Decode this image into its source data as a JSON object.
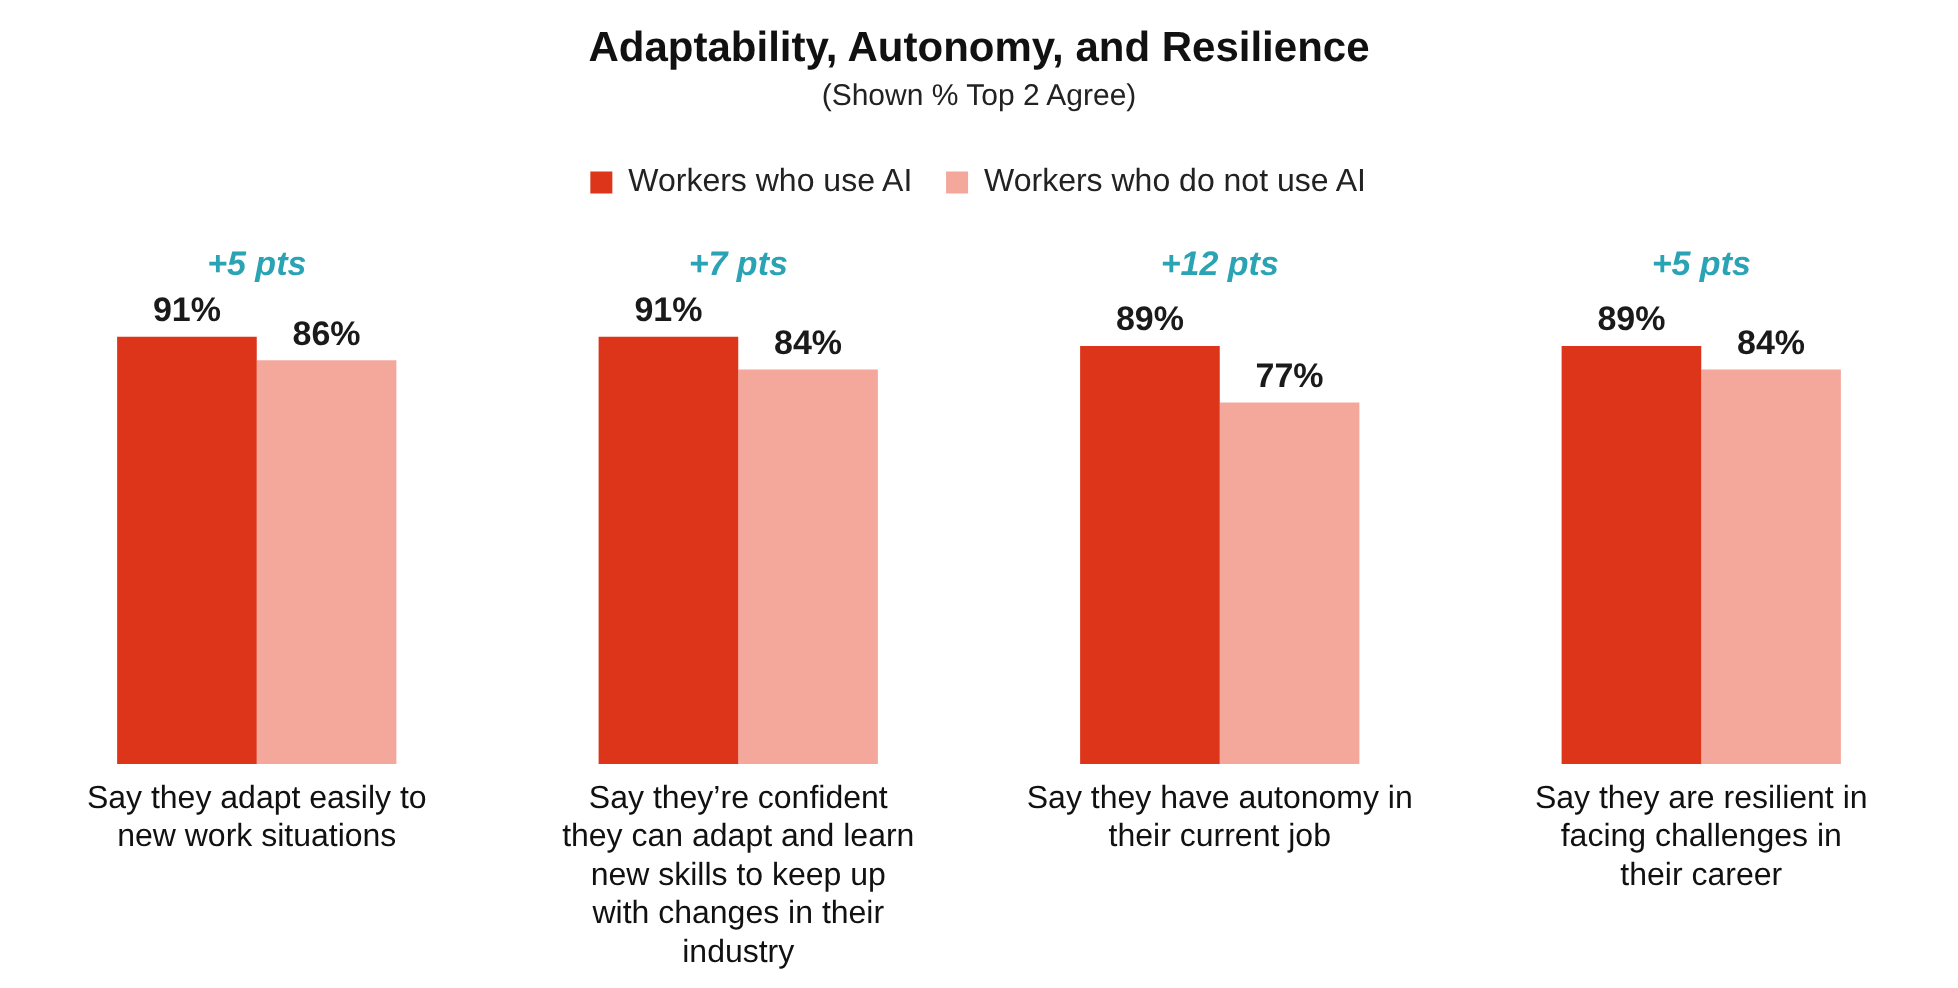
{
  "chart_data": {
    "type": "bar",
    "title": "Adaptability, Autonomy, and Resilience",
    "subtitle": "(Shown % Top 2 Agree)",
    "categories": [
      "Say they adapt easily to new work situations",
      "Say they’re confident they can adapt and learn new skills to keep up with changes in their industry",
      "Say they have autonomy in their current job",
      "Say they are resilient in facing challenges in their career"
    ],
    "series": [
      {
        "name": "Workers who use AI",
        "color": "#dc3519",
        "values": [
          91,
          91,
          89,
          89
        ],
        "value_labels": [
          "91%",
          "91%",
          "89%",
          "89%"
        ]
      },
      {
        "name": "Workers who do not use AI",
        "color": "#f4a89c",
        "values": [
          86,
          84,
          77,
          84
        ],
        "value_labels": [
          "86%",
          "84%",
          "77%",
          "84%"
        ]
      }
    ],
    "annotations": [
      "+5 pts",
      "+7 pts",
      "+12 pts",
      "+5 pts"
    ],
    "legend": "top",
    "grid": false
  }
}
